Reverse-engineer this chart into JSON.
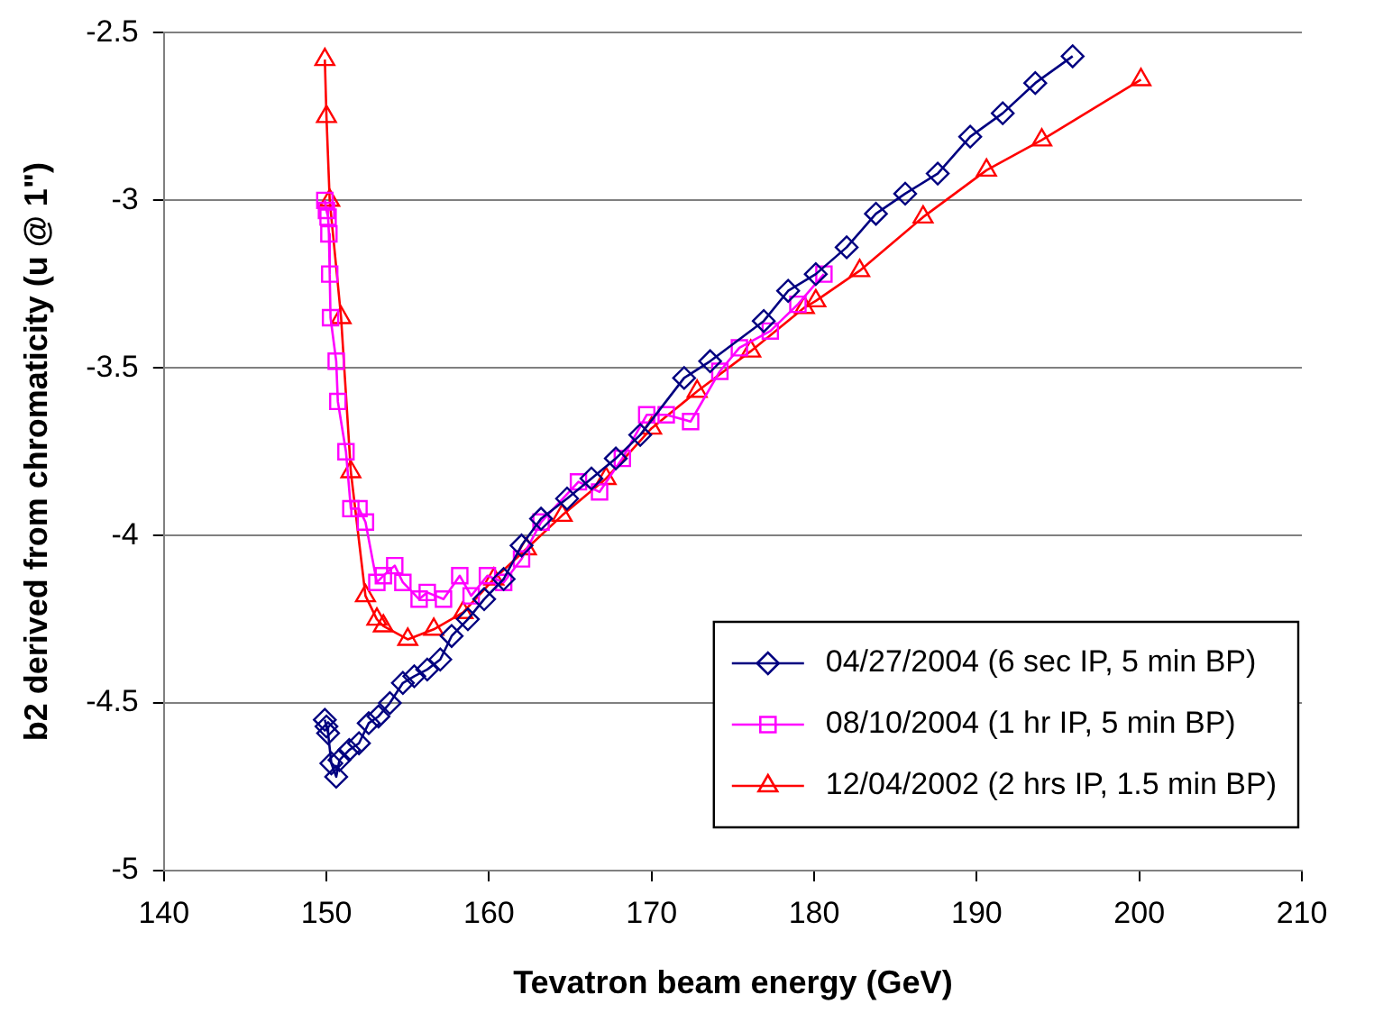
{
  "chart_data": {
    "type": "line",
    "xlabel": "Tevatron beam energy (GeV)",
    "ylabel": "b2 derived from chromaticity (u @ 1\")",
    "xlim": [
      140,
      210
    ],
    "xticks": [
      140,
      150,
      160,
      170,
      180,
      190,
      200,
      210
    ],
    "ylim": [
      -5,
      -2.5
    ],
    "yticks": [
      -5,
      -4.5,
      -4,
      -3.5,
      -3,
      -2.5
    ],
    "grid": "y",
    "legend": "bottom right",
    "series": [
      {
        "name": "04/27/2004 (6 sec IP, 5 min BP)",
        "color": "#000080",
        "marker": "diamond",
        "x": [
          149.9,
          150.0,
          150.1,
          150.3,
          150.6,
          150.8,
          151.4,
          152.0,
          152.6,
          153.2,
          153.9,
          154.7,
          155.4,
          156.2,
          157.0,
          157.7,
          158.7,
          159.7,
          160.9,
          162.0,
          163.2,
          164.8,
          166.3,
          167.8,
          169.3,
          172.0,
          173.6,
          176.9,
          178.4,
          180.1,
          182.0,
          183.8,
          185.6,
          187.6,
          189.6,
          191.6,
          193.6,
          195.9
        ],
        "values": [
          -4.55,
          -4.57,
          -4.59,
          -4.68,
          -4.72,
          -4.67,
          -4.64,
          -4.62,
          -4.56,
          -4.54,
          -4.5,
          -4.44,
          -4.42,
          -4.4,
          -4.37,
          -4.3,
          -4.25,
          -4.19,
          -4.13,
          -4.03,
          -3.95,
          -3.89,
          -3.83,
          -3.77,
          -3.7,
          -3.53,
          -3.48,
          -3.36,
          -3.27,
          -3.22,
          -3.14,
          -3.04,
          -2.98,
          -2.92,
          -2.81,
          -2.74,
          -2.65,
          -2.57
        ]
      },
      {
        "name": "08/10/2004 (1 hr IP, 5 min BP)",
        "color": "#ff00ff",
        "marker": "square",
        "x": [
          149.9,
          150.0,
          150.1,
          150.15,
          150.2,
          150.25,
          150.6,
          150.7,
          151.2,
          151.5,
          152.0,
          152.4,
          153.1,
          153.5,
          154.2,
          154.7,
          155.7,
          156.2,
          157.2,
          158.2,
          158.9,
          159.9,
          160.9,
          162.0,
          163.2,
          165.5,
          166.8,
          168.2,
          169.7,
          170.9,
          172.4,
          174.2,
          175.4,
          177.3,
          179.0,
          180.6
        ],
        "values": [
          -3.0,
          -3.03,
          -3.05,
          -3.1,
          -3.22,
          -3.35,
          -3.48,
          -3.6,
          -3.75,
          -3.92,
          -3.92,
          -3.96,
          -4.14,
          -4.12,
          -4.09,
          -4.14,
          -4.19,
          -4.17,
          -4.19,
          -4.12,
          -4.18,
          -4.12,
          -4.14,
          -4.07,
          -3.96,
          -3.84,
          -3.87,
          -3.77,
          -3.64,
          -3.64,
          -3.66,
          -3.51,
          -3.44,
          -3.39,
          -3.31,
          -3.22
        ]
      },
      {
        "name": "12/04/2002 (2 hrs IP, 1.5 min BP)",
        "color": "#ff0000",
        "marker": "triangle",
        "x": [
          149.9,
          150.0,
          150.2,
          150.9,
          151.5,
          152.4,
          153.1,
          153.5,
          155.0,
          156.6,
          158.4,
          160.3,
          162.3,
          164.5,
          167.2,
          170.0,
          172.8,
          176.1,
          179.4,
          180.1,
          182.8,
          186.7,
          190.6,
          194.0,
          200.1
        ],
        "values": [
          -2.58,
          -2.75,
          -3.0,
          -3.35,
          -3.81,
          -4.18,
          -4.25,
          -4.27,
          -4.31,
          -4.28,
          -4.23,
          -4.13,
          -4.04,
          -3.94,
          -3.83,
          -3.68,
          -3.57,
          -3.45,
          -3.32,
          -3.3,
          -3.21,
          -3.05,
          -2.91,
          -2.82,
          -2.64
        ]
      }
    ]
  }
}
